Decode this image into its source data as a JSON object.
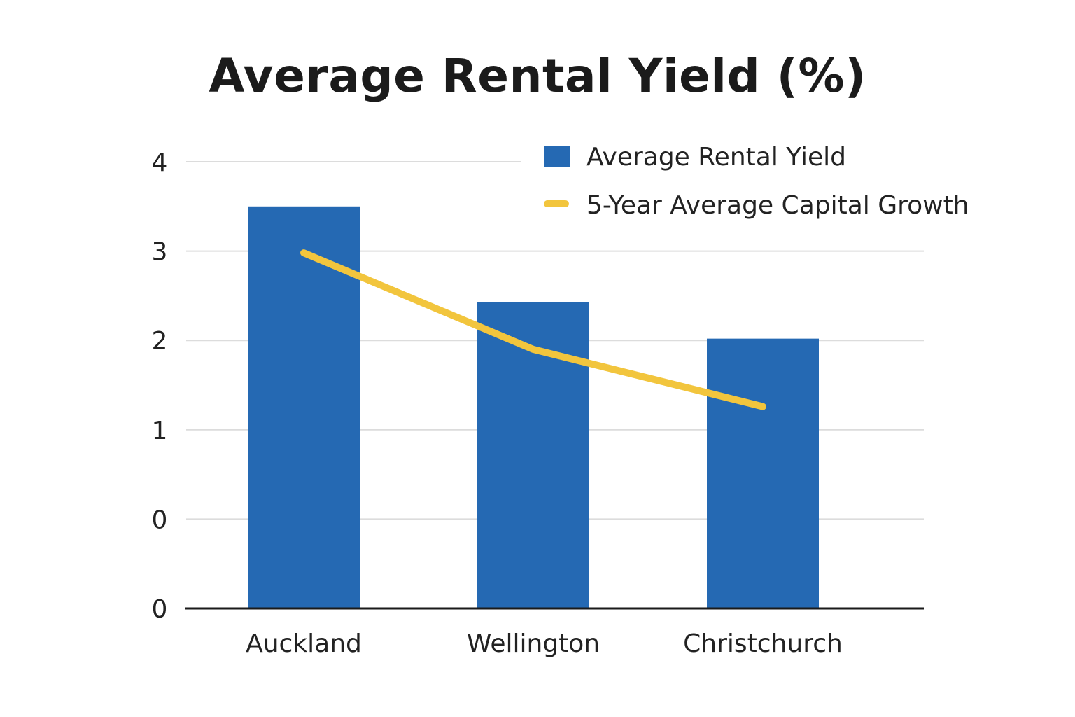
{
  "chart_data": {
    "type": "bar",
    "title": "Average Rental Yield (%)",
    "categories": [
      "Auckland",
      "Wellington",
      "Christchurch"
    ],
    "series": [
      {
        "name": "Average Rental Yield",
        "kind": "bar",
        "color": "#2569b3",
        "values": [
          3.5,
          2.43,
          2.02
        ]
      },
      {
        "name": "5-Year Average Capital Growth",
        "kind": "line",
        "color": "#f2c53d",
        "values": [
          2.98,
          1.9,
          1.26
        ]
      }
    ],
    "y_tick_labels": [
      "0",
      "0",
      "1",
      "2",
      "3",
      "4"
    ],
    "ylim": [
      -1,
      4
    ],
    "grid": true,
    "legend_position": "top-right"
  }
}
